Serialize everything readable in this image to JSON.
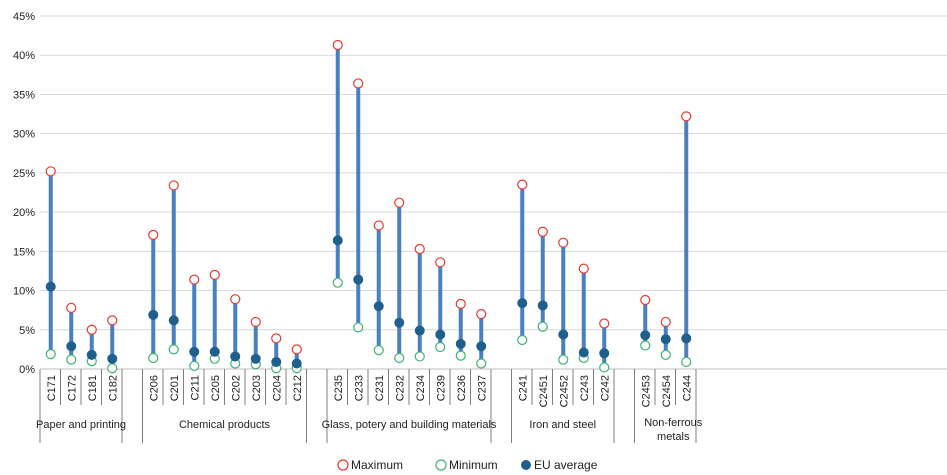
{
  "chart_data": {
    "type": "scatter",
    "variant": "range-dot",
    "y_axis": {
      "min": 0,
      "max": 45,
      "step": 5,
      "unit": "%",
      "tick_labels": [
        "0%",
        "5%",
        "10%",
        "15%",
        "20%",
        "25%",
        "30%",
        "35%",
        "40%",
        "45%"
      ]
    },
    "grid": true,
    "legend": {
      "position": "bottom",
      "entries": [
        "Maximum",
        "Minimum",
        "EU average"
      ]
    },
    "colors": {
      "maximum": "#e8392f",
      "minimum": "#3cb371",
      "average": "#1f5f8b",
      "range": "#4a7fc1",
      "grid": "#d9d9d9"
    },
    "groups": [
      {
        "label": "Paper and printing",
        "codes": [
          "C171",
          "C172",
          "C181",
          "C182"
        ]
      },
      {
        "label": "Chemical products",
        "codes": [
          "C206",
          "C201",
          "C211",
          "C205",
          "C202",
          "C203",
          "C204",
          "C212"
        ]
      },
      {
        "label": "Glass, potery and building materials",
        "codes": [
          "C235",
          "C233",
          "C231",
          "C232",
          "C234",
          "C239",
          "C236",
          "C237"
        ]
      },
      {
        "label": "Iron and steel",
        "codes": [
          "C241",
          "C2451",
          "C2452",
          "C243",
          "C242"
        ]
      },
      {
        "label": "Non-ferrous metals",
        "codes": [
          "C2453",
          "C2454",
          "C244"
        ]
      }
    ],
    "categories": [
      "C171",
      "C172",
      "C181",
      "C182",
      "C206",
      "C201",
      "C211",
      "C205",
      "C202",
      "C203",
      "C204",
      "C212",
      "C235",
      "C233",
      "C231",
      "C232",
      "C234",
      "C239",
      "C236",
      "C237",
      "C241",
      "C2451",
      "C2452",
      "C243",
      "C242",
      "C2453",
      "C2454",
      "C244"
    ],
    "series": [
      {
        "name": "Maximum",
        "values": [
          25.2,
          7.8,
          5.0,
          6.2,
          17.1,
          23.4,
          11.4,
          12.0,
          8.9,
          6.0,
          3.9,
          2.5,
          41.3,
          36.4,
          18.3,
          21.2,
          15.3,
          13.6,
          8.3,
          7.0,
          23.5,
          17.5,
          16.1,
          12.8,
          5.8,
          8.8,
          6.0,
          32.2
        ]
      },
      {
        "name": "Minimum",
        "values": [
          1.9,
          1.2,
          1.0,
          0.1,
          1.4,
          2.5,
          0.4,
          1.3,
          0.7,
          0.6,
          0.1,
          0.1,
          11.0,
          5.3,
          2.4,
          1.4,
          1.6,
          2.8,
          1.7,
          0.7,
          3.7,
          5.4,
          1.2,
          1.4,
          0.2,
          3.0,
          1.8,
          0.9
        ]
      },
      {
        "name": "EU average",
        "values": [
          10.5,
          2.9,
          1.8,
          1.3,
          6.9,
          6.2,
          2.2,
          2.2,
          1.6,
          1.3,
          0.9,
          0.7,
          16.4,
          11.4,
          8.0,
          5.9,
          4.9,
          4.4,
          3.2,
          2.9,
          8.4,
          8.1,
          4.4,
          2.1,
          2.0,
          4.3,
          3.8,
          3.9
        ]
      }
    ]
  }
}
